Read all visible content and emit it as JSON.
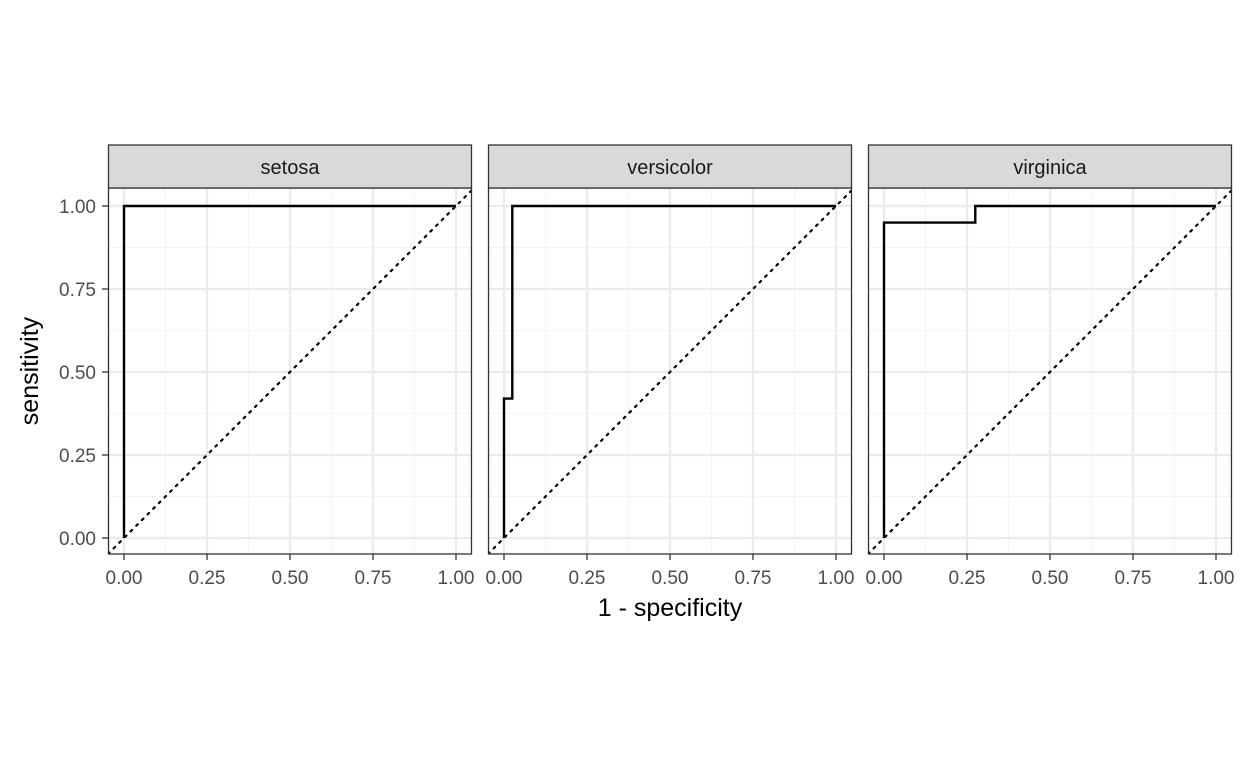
{
  "chart_data": {
    "type": "line",
    "xlabel": "1 - specificity",
    "ylabel": "sensitivity",
    "xlim": [
      0,
      1
    ],
    "ylim": [
      0,
      1
    ],
    "x_ticks": [
      "0.00",
      "0.25",
      "0.50",
      "0.75",
      "1.00"
    ],
    "y_ticks": [
      "0.00",
      "0.25",
      "0.50",
      "0.75",
      "1.00"
    ],
    "grid": true,
    "reference_line": "diagonal, dotted",
    "panels": [
      {
        "facet": "setosa",
        "points": [
          [
            0,
            0
          ],
          [
            0,
            1
          ],
          [
            1,
            1
          ]
        ]
      },
      {
        "facet": "versicolor",
        "points": [
          [
            0,
            0
          ],
          [
            0,
            0.42
          ],
          [
            0.025,
            0.42
          ],
          [
            0.025,
            1
          ],
          [
            1,
            1
          ]
        ]
      },
      {
        "facet": "virginica",
        "points": [
          [
            0,
            0
          ],
          [
            0,
            0.95
          ],
          [
            0.275,
            0.95
          ],
          [
            0.275,
            1
          ],
          [
            1,
            1
          ]
        ]
      }
    ]
  },
  "colors": {
    "strip_fill": "#d9d9d9",
    "panel_border": "#333333",
    "grid_major": "#ebebeb",
    "grid_minor": "#f5f5f5",
    "curve": "#000000"
  }
}
